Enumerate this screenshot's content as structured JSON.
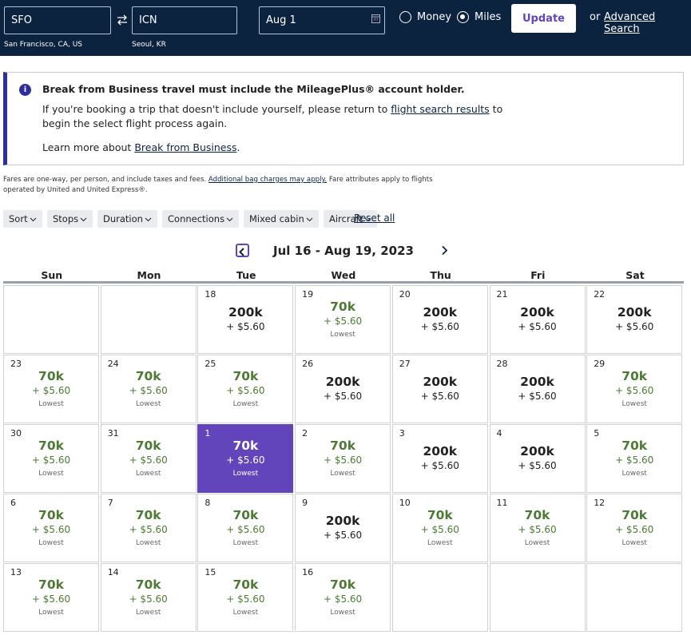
{
  "header": {
    "origin": {
      "code": "SFO",
      "city": "San Francisco, CA, US"
    },
    "destination": {
      "code": "ICN",
      "city": "Seoul, KR"
    },
    "date": "Aug 1",
    "options": [
      "Money",
      "Miles"
    ],
    "selected_option": 1,
    "update": "Update",
    "or": "or",
    "advanced_search": "Advanced Search"
  },
  "notice": {
    "title": "Break from Business travel must include the MileagePlus® account holder.",
    "body": [
      "If you're booking a trip that doesn't include yourself, please return to ",
      "flight search results",
      " to begin the select flight process again."
    ],
    "learn_more": [
      "Learn more about ",
      "Break from Business",
      "."
    ]
  },
  "fare_note": [
    "Fares are one-way, per person, and include taxes and fees. ",
    "Additional bag charges may apply.",
    " Fare attributes apply to flights operated by United and United Express®."
  ],
  "filters": [
    "Sort",
    "Stops",
    "Duration",
    "Connections",
    "Mixed cabin",
    "Aircraft"
  ],
  "reset": "Reset all",
  "calendar": {
    "title": "Jul 16 - Aug 19, 2023",
    "weekdays": [
      "Sun",
      "Mon",
      "Tue",
      "Wed",
      "Thu",
      "Fri",
      "Sat"
    ],
    "weeks": [
      [
        null,
        null,
        {
          "day": "18",
          "price": "200k",
          "fee": "+ $5.60"
        },
        {
          "day": "19",
          "price": "70k",
          "fee": "+ $5.60",
          "note": "Lowest"
        },
        {
          "day": "20",
          "price": "200k",
          "fee": "+ $5.60"
        },
        {
          "day": "21",
          "price": "200k",
          "fee": "+ $5.60"
        },
        {
          "day": "22",
          "price": "200k",
          "fee": "+ $5.60"
        }
      ],
      [
        {
          "day": "23",
          "price": "70k",
          "fee": "+ $5.60",
          "note": "Lowest"
        },
        {
          "day": "24",
          "price": "70k",
          "fee": "+ $5.60",
          "note": "Lowest"
        },
        {
          "day": "25",
          "price": "70k",
          "fee": "+ $5.60",
          "note": "Lowest"
        },
        {
          "day": "26",
          "price": "200k",
          "fee": "+ $5.60"
        },
        {
          "day": "27",
          "price": "200k",
          "fee": "+ $5.60"
        },
        {
          "day": "28",
          "price": "200k",
          "fee": "+ $5.60"
        },
        {
          "day": "29",
          "price": "70k",
          "fee": "+ $5.60",
          "note": "Lowest"
        }
      ],
      [
        {
          "day": "30",
          "price": "70k",
          "fee": "+ $5.60",
          "note": "Lowest"
        },
        {
          "day": "31",
          "price": "70k",
          "fee": "+ $5.60",
          "note": "Lowest"
        },
        {
          "day": "1",
          "price": "70k",
          "fee": "+ $5.60",
          "note": "Lowest",
          "selected": true
        },
        {
          "day": "2",
          "price": "70k",
          "fee": "+ $5.60",
          "note": "Lowest"
        },
        {
          "day": "3",
          "price": "200k",
          "fee": "+ $5.60"
        },
        {
          "day": "4",
          "price": "200k",
          "fee": "+ $5.60"
        },
        {
          "day": "5",
          "price": "70k",
          "fee": "+ $5.60",
          "note": "Lowest"
        }
      ],
      [
        {
          "day": "6",
          "price": "70k",
          "fee": "+ $5.60",
          "note": "Lowest"
        },
        {
          "day": "7",
          "price": "70k",
          "fee": "+ $5.60",
          "note": "Lowest"
        },
        {
          "day": "8",
          "price": "70k",
          "fee": "+ $5.60",
          "note": "Lowest"
        },
        {
          "day": "9",
          "price": "200k",
          "fee": "+ $5.60"
        },
        {
          "day": "10",
          "price": "70k",
          "fee": "+ $5.60",
          "note": "Lowest"
        },
        {
          "day": "11",
          "price": "70k",
          "fee": "+ $5.60",
          "note": "Lowest"
        },
        {
          "day": "12",
          "price": "70k",
          "fee": "+ $5.60",
          "note": "Lowest"
        }
      ],
      [
        {
          "day": "13",
          "price": "70k",
          "fee": "+ $5.60",
          "note": "Lowest"
        },
        {
          "day": "14",
          "price": "70k",
          "fee": "+ $5.60",
          "note": "Lowest"
        },
        {
          "day": "15",
          "price": "70k",
          "fee": "+ $5.60",
          "note": "Lowest"
        },
        {
          "day": "16",
          "price": "70k",
          "fee": "+ $5.60",
          "note": "Lowest"
        },
        null,
        null,
        null
      ]
    ]
  }
}
